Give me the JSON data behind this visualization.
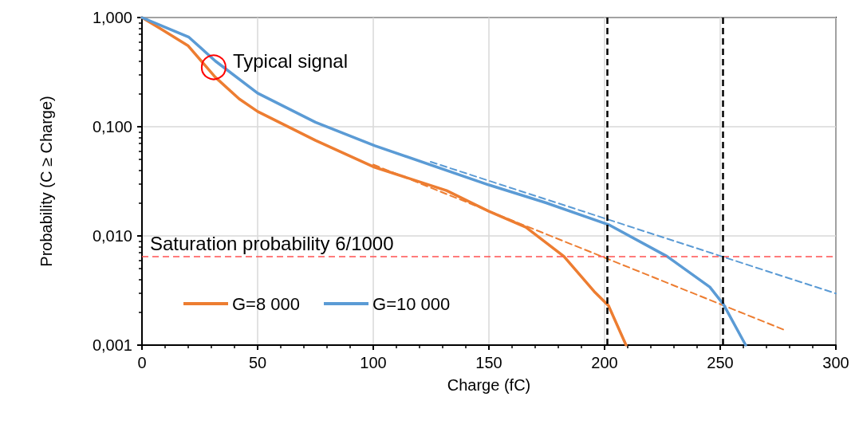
{
  "chart_data": {
    "type": "line",
    "xlabel": "Charge (fC)",
    "ylabel": "Probability (C ≥ Charge)",
    "log": "y",
    "grid": true,
    "legend": "bottom left",
    "marker": "none",
    "line_style": "solid",
    "xlim": [
      0,
      300
    ],
    "xticks": [
      0,
      50,
      100,
      150,
      200,
      250,
      300
    ],
    "ylim": [
      0.001,
      1
    ],
    "yticks": [
      {
        "value": 0.001,
        "label": "0,001"
      },
      {
        "value": 0.01,
        "label": "0,010"
      },
      {
        "value": 0.1,
        "label": "0,100"
      },
      {
        "value": 1,
        "label": "1,000"
      }
    ],
    "series": [
      {
        "name": "G=8 000",
        "color": "#ed7d31",
        "x": [
          0,
          7.6,
          20,
          31.7,
          42,
          50,
          75,
          100,
          131.7,
          150,
          166,
          182.4,
          195.5,
          201.7,
          209.3
        ],
        "values": [
          1,
          0.8,
          0.55,
          0.284,
          0.18,
          0.138,
          0.075,
          0.043,
          0.026,
          0.0168,
          0.012,
          0.0065,
          0.0031,
          0.0023,
          0.001
        ]
      },
      {
        "name": "G=10 000",
        "color": "#5b9bd5",
        "x": [
          0,
          11,
          20.3,
          31.7,
          50,
          75,
          100.7,
          150,
          175,
          201.7,
          227,
          245.5,
          251.4,
          261
        ],
        "values": [
          1,
          0.8,
          0.66,
          0.4,
          0.203,
          0.11,
          0.067,
          0.0293,
          0.02,
          0.0127,
          0.0065,
          0.0034,
          0.00236,
          0.001
        ]
      },
      {
        "color": "#ed7d31",
        "line_style": "dashed",
        "x": [
          100,
          278
        ],
        "values": [
          0.045,
          0.00137
        ]
      },
      {
        "color": "#5b9bd5",
        "line_style": "dashed",
        "x": [
          124.8,
          300
        ],
        "values": [
          0.0477,
          0.00297
        ]
      }
    ],
    "ref_lines": [
      {
        "axis": "y",
        "value": 0.0065,
        "label": "Saturation probability 6/1000",
        "color": "#ff5050",
        "line_style": "dashed"
      },
      {
        "axis": "x",
        "value": 201,
        "color": "#000000",
        "line_style": "dashed"
      },
      {
        "axis": "x",
        "value": 251,
        "color": "#000000",
        "line_style": "dashed"
      }
    ],
    "annotations": [
      {
        "text": "Typical signal",
        "x": 31,
        "y": 0.35
      }
    ]
  }
}
